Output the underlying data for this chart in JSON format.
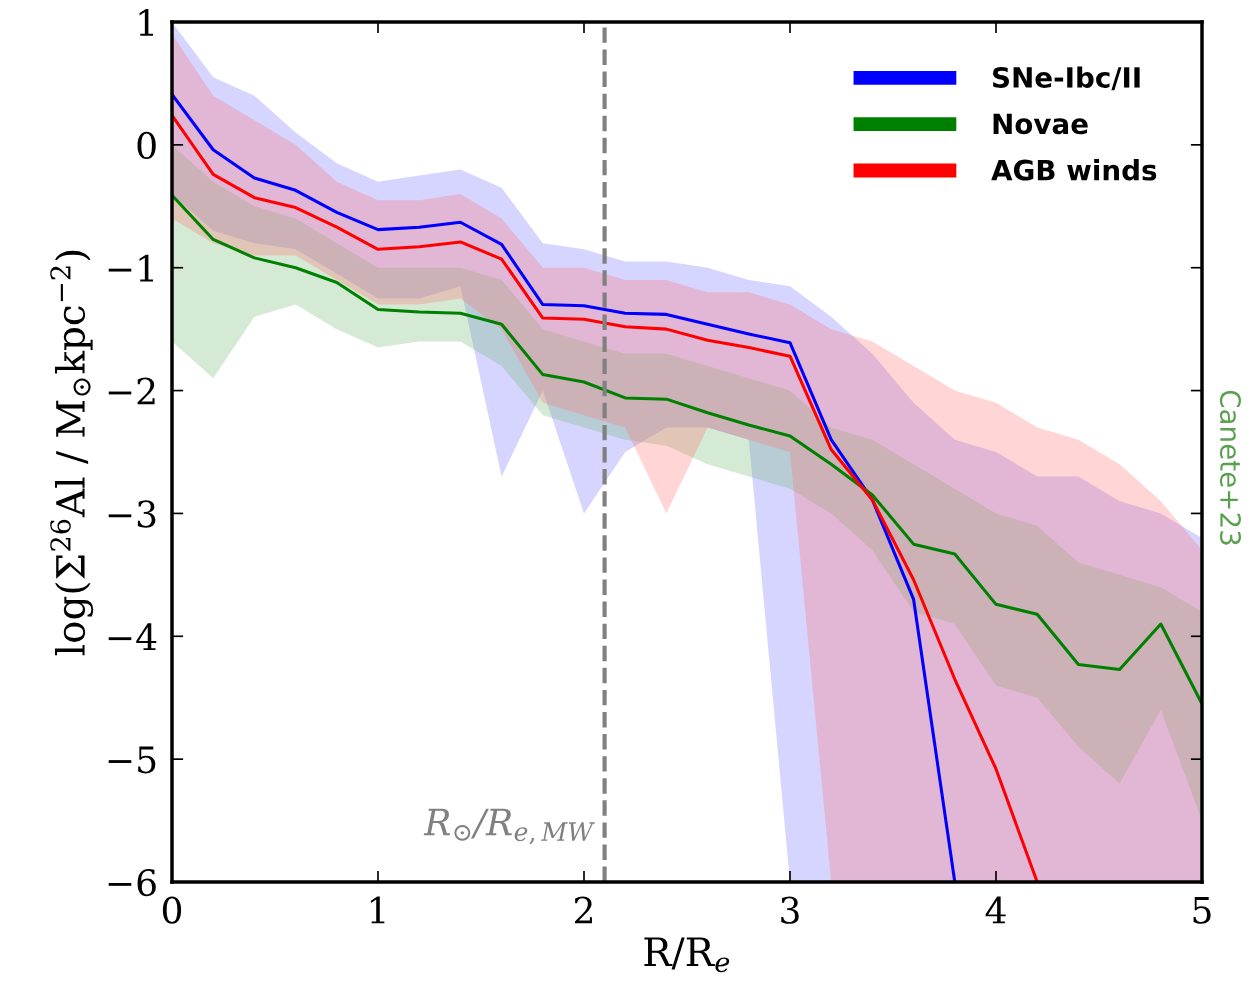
{
  "chart_data": {
    "type": "line",
    "xlabel": "R/R$_{e}$",
    "ylabel": "log(Σ$^{26}$Al / M$_{⊙}$kpc$^{−2}$)",
    "x": [
      0,
      0.2,
      0.4,
      0.6,
      0.8,
      1.0,
      1.2,
      1.4,
      1.6,
      1.8,
      2.0,
      2.2,
      2.4,
      2.6,
      2.8,
      3.0,
      3.2,
      3.4,
      3.6,
      3.8,
      4.0,
      4.2,
      4.4,
      4.6,
      4.8,
      5.0
    ],
    "series": [
      {
        "name": "SNe-Ibc/II",
        "color": "#0000ff",
        "values": [
          0.41,
          -0.04,
          -0.27,
          -0.37,
          -0.55,
          -0.69,
          -0.67,
          -0.63,
          -0.81,
          -1.3,
          -1.31,
          -1.37,
          -1.38,
          -1.46,
          -1.54,
          -1.61,
          -2.4,
          -2.89,
          -3.7,
          -6.0,
          null,
          null,
          null,
          null,
          null,
          null
        ],
        "lower": [
          -0.4,
          -0.7,
          -0.8,
          -0.85,
          -1.05,
          -1.25,
          -1.25,
          -1.15,
          -2.7,
          -2.0,
          -3.0,
          -2.5,
          -2.3,
          -2.3,
          -2.4,
          -6,
          -6,
          -6,
          -6,
          -6,
          -6,
          -6,
          -6,
          -6,
          -6,
          -6
        ],
        "upper": [
          1.0,
          0.55,
          0.4,
          0.1,
          -0.15,
          -0.3,
          -0.25,
          -0.2,
          -0.35,
          -0.8,
          -0.85,
          -0.95,
          -0.95,
          -1.0,
          -1.1,
          -1.15,
          -1.4,
          -1.7,
          -2.1,
          -2.4,
          -2.5,
          -2.7,
          -2.7,
          -2.9,
          -3.0,
          -3.2
        ]
      },
      {
        "name": "Novae",
        "color": "#008000",
        "values": [
          -0.41,
          -0.77,
          -0.92,
          -1.0,
          -1.12,
          -1.34,
          -1.36,
          -1.37,
          -1.46,
          -1.87,
          -1.93,
          -2.06,
          -2.07,
          -2.18,
          -2.28,
          -2.37,
          -2.6,
          -2.85,
          -3.25,
          -3.33,
          -3.74,
          -3.82,
          -4.23,
          -4.27,
          -3.9,
          -4.55
        ],
        "lower": [
          -1.6,
          -1.9,
          -1.4,
          -1.3,
          -1.5,
          -1.65,
          -1.6,
          -1.6,
          -1.8,
          -2.2,
          -2.3,
          -2.4,
          -2.45,
          -2.6,
          -2.7,
          -2.8,
          -3.0,
          -3.3,
          -3.8,
          -3.9,
          -4.4,
          -4.5,
          -4.9,
          -5.2,
          -4.6,
          -5.5
        ],
        "upper": [
          0.0,
          -0.3,
          -0.5,
          -0.6,
          -0.8,
          -1.0,
          -1.0,
          -1.0,
          -1.1,
          -1.5,
          -1.6,
          -1.7,
          -1.7,
          -1.8,
          -1.9,
          -2.0,
          -2.3,
          -2.4,
          -2.6,
          -2.8,
          -3.0,
          -3.1,
          -3.4,
          -3.5,
          -3.6,
          -3.8
        ]
      },
      {
        "name": "AGB winds",
        "color": "#ff0000",
        "values": [
          0.24,
          -0.24,
          -0.43,
          -0.51,
          -0.67,
          -0.85,
          -0.83,
          -0.79,
          -0.93,
          -1.41,
          -1.42,
          -1.48,
          -1.5,
          -1.59,
          -1.65,
          -1.72,
          -2.48,
          -2.89,
          -3.54,
          -4.35,
          -5.08,
          -6.0,
          null,
          null,
          null,
          null
        ],
        "lower": [
          -0.6,
          -0.8,
          -0.9,
          -0.9,
          -1.1,
          -1.3,
          -1.3,
          -1.25,
          -1.5,
          -2.1,
          -2.2,
          -2.3,
          -3.0,
          -2.3,
          -2.4,
          -2.5,
          -6,
          -6,
          -6,
          -6,
          -6,
          -6,
          -6,
          -6,
          -6,
          -6
        ],
        "upper": [
          0.9,
          0.4,
          0.2,
          0.0,
          -0.3,
          -0.45,
          -0.45,
          -0.4,
          -0.6,
          -1.0,
          -1.0,
          -1.1,
          -1.1,
          -1.2,
          -1.2,
          -1.3,
          -1.5,
          -1.6,
          -1.8,
          -2.0,
          -2.1,
          -2.3,
          -2.4,
          -2.6,
          -2.9,
          -3.3
        ]
      }
    ],
    "xlim": [
      0,
      5
    ],
    "xticks": [
      0,
      1,
      2,
      3,
      4,
      5
    ],
    "ylim": [
      -6,
      1
    ],
    "yticks": [
      {
        "value": -6,
        "label": "−6"
      },
      {
        "value": -5,
        "label": "−5"
      },
      {
        "value": -4,
        "label": "−4"
      },
      {
        "value": -3,
        "label": "−3"
      },
      {
        "value": -2,
        "label": "−2"
      },
      {
        "value": -1,
        "label": "−1"
      },
      0,
      1
    ],
    "ref_lines": [
      {
        "axis": "x",
        "value": 2.1,
        "label": "R$_{⊙}$/R$_{e,MW}$",
        "color": "#808080",
        "line_style": "dashed"
      }
    ],
    "annotations": [
      "Canete+23"
    ],
    "legend": "top right",
    "grid": false,
    "marker": "none",
    "line_style": "solid"
  }
}
